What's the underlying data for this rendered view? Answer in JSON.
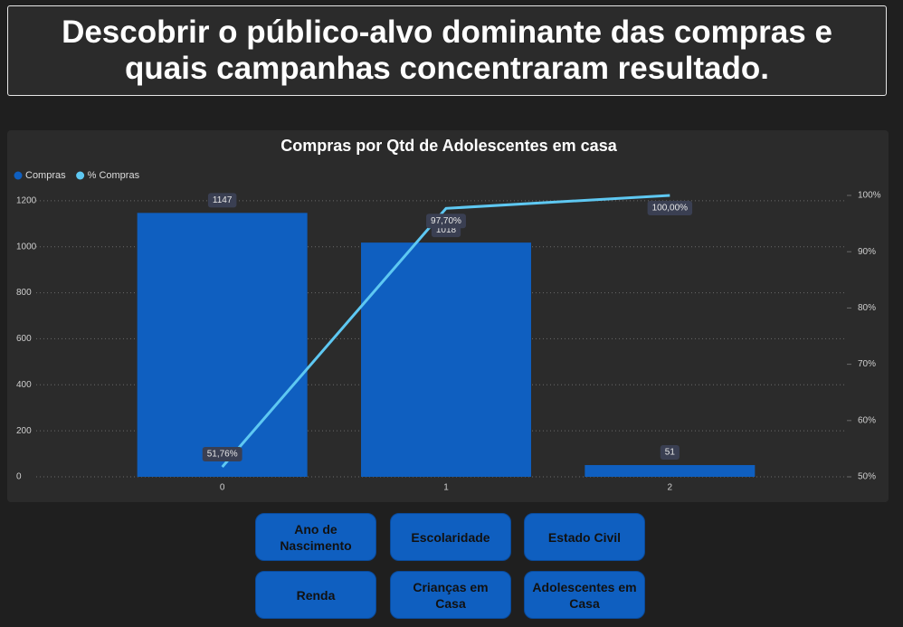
{
  "header": {
    "title": "Descobrir o público-alvo dominante das compras e quais campanhas concentraram resultado."
  },
  "chart_data": {
    "type": "bar",
    "title": "Compras por Qtd de Adolescentes em casa",
    "categories": [
      "0",
      "1",
      "2"
    ],
    "series": [
      {
        "name": "Compras",
        "color": "#0f5fc0",
        "values": [
          1147,
          1018,
          51
        ]
      },
      {
        "name": "% Compras",
        "color": "#5ec8f2",
        "axis": "y2",
        "type": "line",
        "values": [
          51.76,
          97.7,
          100.0
        ],
        "value_labels": [
          "51,76%",
          "97,70%",
          "100,00%"
        ]
      }
    ],
    "ylim": [
      0,
      1223
    ],
    "yticks": [
      0,
      200,
      400,
      600,
      800,
      1000,
      1200
    ],
    "y2lim": [
      50,
      100
    ],
    "y2ticks": [
      {
        "value": 50,
        "label": "50%"
      },
      {
        "value": 60,
        "label": "60%"
      },
      {
        "value": 70,
        "label": "70%"
      },
      {
        "value": 80,
        "label": "80%"
      },
      {
        "value": 90,
        "label": "90%"
      },
      {
        "value": 100,
        "label": "100%"
      }
    ],
    "grid": true,
    "legend": "top-left"
  },
  "buttons": [
    "Ano de Nascimento",
    "Escolaridade",
    "Estado Civil",
    "Renda",
    "Crianças em Casa",
    "Adolescentes em Casa"
  ]
}
